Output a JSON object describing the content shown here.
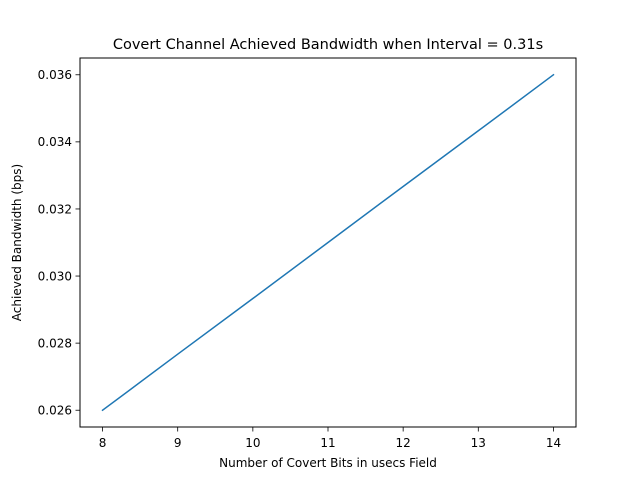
{
  "chart_data": {
    "type": "line",
    "title": "Covert Channel Achieved Bandwidth when Interval = 0.31s",
    "xlabel": "Number of Covert Bits in usecs Field",
    "ylabel": "Achieved Bandwidth (bps)",
    "xlim": [
      7.7,
      14.3
    ],
    "ylim": [
      0.0255,
      0.0365
    ],
    "xticks": [
      8,
      9,
      10,
      11,
      12,
      13,
      14
    ],
    "yticks": [
      0.026,
      0.028,
      0.03,
      0.032,
      0.034,
      0.036
    ],
    "ytick_labels": [
      "0.026",
      "0.028",
      "0.030",
      "0.032",
      "0.034",
      "0.036"
    ],
    "grid": false,
    "series": [
      {
        "color": "#1f77b4",
        "x": [
          8,
          9,
          10,
          11,
          12,
          13,
          14
        ],
        "y": [
          0.026,
          0.02767,
          0.02933,
          0.031,
          0.03267,
          0.03433,
          0.036
        ]
      }
    ]
  }
}
